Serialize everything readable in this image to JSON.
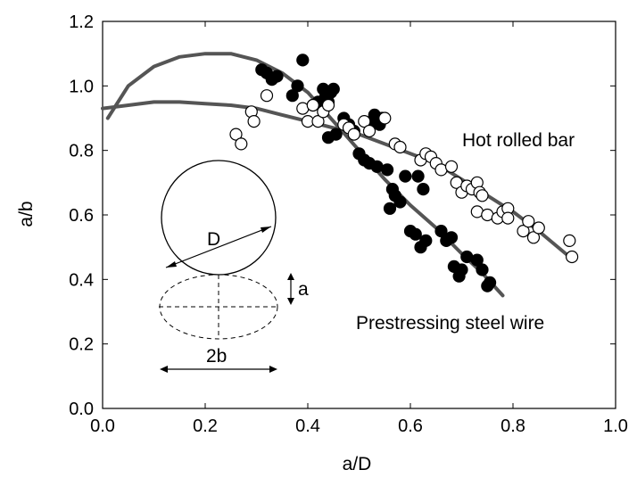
{
  "chart_data": {
    "type": "scatter",
    "title": "",
    "xlabel": "a/D",
    "ylabel": "a/b",
    "xlim": [
      0.0,
      1.0
    ],
    "ylim": [
      0.0,
      1.2
    ],
    "xticks": [
      "0.0",
      "0.2",
      "0.4",
      "0.6",
      "0.8",
      "1.0"
    ],
    "yticks": [
      "0.0",
      "0.2",
      "0.4",
      "0.6",
      "0.8",
      "1.0",
      "1.2"
    ],
    "grid": false,
    "series": [
      {
        "name": "Prestressing steel wire",
        "marker": "filled-circle",
        "color": "#000000",
        "points": [
          [
            0.31,
            1.05
          ],
          [
            0.32,
            1.04
          ],
          [
            0.33,
            1.02
          ],
          [
            0.34,
            1.03
          ],
          [
            0.37,
            0.97
          ],
          [
            0.38,
            1.0
          ],
          [
            0.39,
            1.08
          ],
          [
            0.41,
            0.94
          ],
          [
            0.42,
            0.95
          ],
          [
            0.43,
            0.99
          ],
          [
            0.435,
            0.97
          ],
          [
            0.44,
            0.95
          ],
          [
            0.445,
            0.98
          ],
          [
            0.45,
            0.99
          ],
          [
            0.44,
            0.84
          ],
          [
            0.455,
            0.85
          ],
          [
            0.47,
            0.9
          ],
          [
            0.48,
            0.88
          ],
          [
            0.49,
            0.86
          ],
          [
            0.5,
            0.79
          ],
          [
            0.51,
            0.77
          ],
          [
            0.52,
            0.76
          ],
          [
            0.525,
            0.89
          ],
          [
            0.53,
            0.91
          ],
          [
            0.535,
            0.75
          ],
          [
            0.54,
            0.88
          ],
          [
            0.545,
            0.9
          ],
          [
            0.555,
            0.74
          ],
          [
            0.56,
            0.62
          ],
          [
            0.565,
            0.68
          ],
          [
            0.57,
            0.66
          ],
          [
            0.58,
            0.64
          ],
          [
            0.59,
            0.72
          ],
          [
            0.6,
            0.55
          ],
          [
            0.61,
            0.54
          ],
          [
            0.615,
            0.72
          ],
          [
            0.62,
            0.5
          ],
          [
            0.625,
            0.68
          ],
          [
            0.63,
            0.52
          ],
          [
            0.66,
            0.55
          ],
          [
            0.67,
            0.52
          ],
          [
            0.68,
            0.53
          ],
          [
            0.685,
            0.44
          ],
          [
            0.695,
            0.41
          ],
          [
            0.7,
            0.43
          ],
          [
            0.71,
            0.47
          ],
          [
            0.73,
            0.46
          ],
          [
            0.74,
            0.43
          ],
          [
            0.75,
            0.38
          ],
          [
            0.755,
            0.39
          ]
        ]
      },
      {
        "name": "Hot rolled bar",
        "marker": "open-circle",
        "color": "#000000",
        "points": [
          [
            0.26,
            0.85
          ],
          [
            0.27,
            0.82
          ],
          [
            0.29,
            0.92
          ],
          [
            0.295,
            0.89
          ],
          [
            0.32,
            0.97
          ],
          [
            0.39,
            0.93
          ],
          [
            0.4,
            0.89
          ],
          [
            0.41,
            0.94
          ],
          [
            0.42,
            0.89
          ],
          [
            0.43,
            0.92
          ],
          [
            0.44,
            0.94
          ],
          [
            0.47,
            0.88
          ],
          [
            0.48,
            0.87
          ],
          [
            0.49,
            0.85
          ],
          [
            0.51,
            0.89
          ],
          [
            0.52,
            0.86
          ],
          [
            0.55,
            0.9
          ],
          [
            0.57,
            0.82
          ],
          [
            0.58,
            0.81
          ],
          [
            0.62,
            0.77
          ],
          [
            0.63,
            0.79
          ],
          [
            0.64,
            0.78
          ],
          [
            0.65,
            0.76
          ],
          [
            0.66,
            0.74
          ],
          [
            0.68,
            0.75
          ],
          [
            0.69,
            0.7
          ],
          [
            0.7,
            0.67
          ],
          [
            0.71,
            0.69
          ],
          [
            0.72,
            0.68
          ],
          [
            0.73,
            0.7
          ],
          [
            0.735,
            0.67
          ],
          [
            0.74,
            0.66
          ],
          [
            0.73,
            0.61
          ],
          [
            0.75,
            0.6
          ],
          [
            0.77,
            0.59
          ],
          [
            0.78,
            0.61
          ],
          [
            0.79,
            0.62
          ],
          [
            0.79,
            0.59
          ],
          [
            0.82,
            0.55
          ],
          [
            0.83,
            0.58
          ],
          [
            0.84,
            0.53
          ],
          [
            0.85,
            0.56
          ],
          [
            0.91,
            0.52
          ],
          [
            0.915,
            0.47
          ]
        ]
      }
    ],
    "curves": [
      {
        "series": "Prestressing steel wire",
        "color": "#555555",
        "points": [
          [
            0.01,
            0.9
          ],
          [
            0.05,
            1.0
          ],
          [
            0.1,
            1.06
          ],
          [
            0.15,
            1.09
          ],
          [
            0.2,
            1.1
          ],
          [
            0.25,
            1.1
          ],
          [
            0.3,
            1.08
          ],
          [
            0.35,
            1.04
          ],
          [
            0.4,
            0.98
          ],
          [
            0.45,
            0.89
          ],
          [
            0.5,
            0.8
          ],
          [
            0.55,
            0.71
          ],
          [
            0.6,
            0.63
          ],
          [
            0.65,
            0.56
          ],
          [
            0.7,
            0.48
          ],
          [
            0.74,
            0.42
          ],
          [
            0.78,
            0.35
          ]
        ]
      },
      {
        "series": "Hot rolled bar",
        "color": "#555555",
        "points": [
          [
            0.0,
            0.93
          ],
          [
            0.05,
            0.94
          ],
          [
            0.1,
            0.95
          ],
          [
            0.15,
            0.95
          ],
          [
            0.2,
            0.945
          ],
          [
            0.25,
            0.94
          ],
          [
            0.3,
            0.93
          ],
          [
            0.35,
            0.91
          ],
          [
            0.4,
            0.89
          ],
          [
            0.45,
            0.87
          ],
          [
            0.5,
            0.85
          ],
          [
            0.55,
            0.82
          ],
          [
            0.6,
            0.79
          ],
          [
            0.65,
            0.76
          ],
          [
            0.7,
            0.71
          ],
          [
            0.75,
            0.66
          ],
          [
            0.8,
            0.61
          ],
          [
            0.85,
            0.55
          ],
          [
            0.91,
            0.47
          ]
        ]
      }
    ],
    "annotations": [
      {
        "text": "Hot rolled bar",
        "near": "right of the open-circle curve"
      },
      {
        "text": "Prestressing steel wire",
        "near": "below the filled-circle curve"
      }
    ],
    "inset": {
      "description_labels": {
        "diameter": "D",
        "depth": "a",
        "width": "2b"
      }
    }
  }
}
